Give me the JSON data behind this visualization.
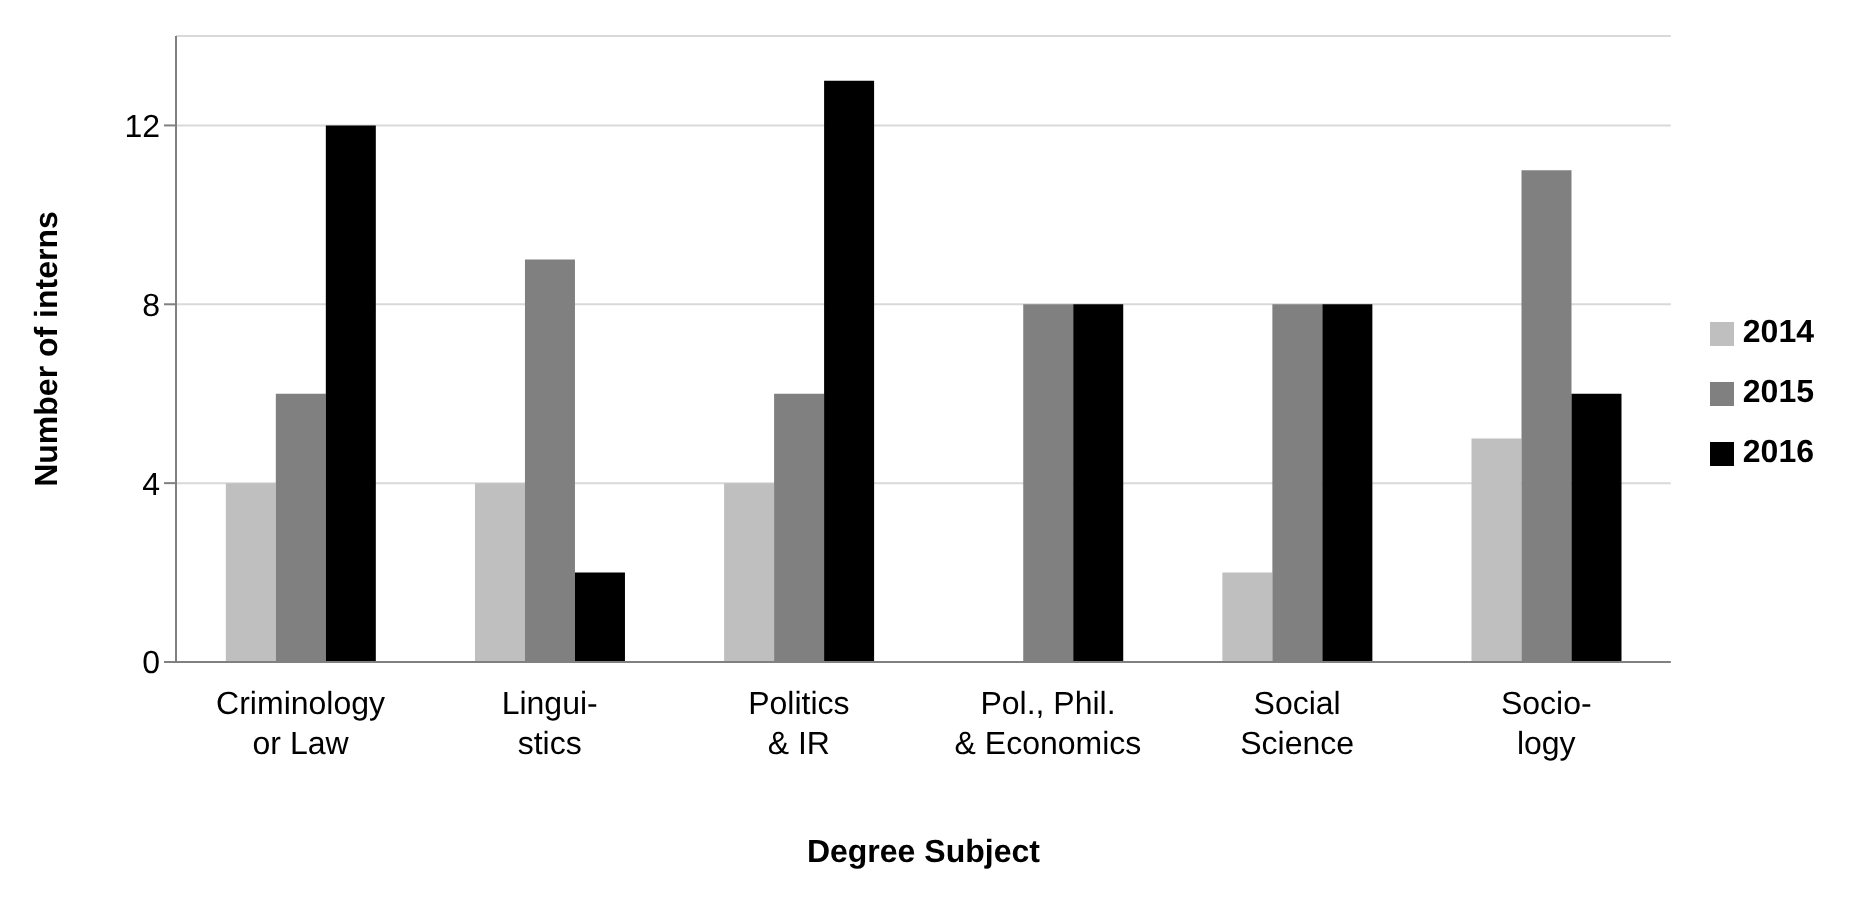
{
  "chart_data": {
    "type": "bar",
    "xlabel": "Degree Subject",
    "ylabel": "Number of interns",
    "categories": [
      "Criminology\nor Law",
      "Lingui-\nstics",
      "Politics\n& IR",
      "Pol., Phil.\n& Economics",
      "Social\nScience",
      "Socio-\nlogy"
    ],
    "series": [
      {
        "name": "2014",
        "color": "#bfbfbf",
        "values": [
          4,
          4,
          4,
          0,
          2,
          5
        ]
      },
      {
        "name": "2015",
        "color": "#808080",
        "values": [
          6,
          9,
          6,
          8,
          8,
          11
        ]
      },
      {
        "name": "2016",
        "color": "#000000",
        "values": [
          12,
          2,
          13,
          8,
          8,
          6
        ]
      }
    ],
    "ylim": [
      0,
      14
    ],
    "yticks": [
      0,
      4,
      8,
      12
    ],
    "grid": "y",
    "legend": "right"
  }
}
